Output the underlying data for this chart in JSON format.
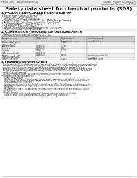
{
  "title": "Safety data sheet for chemical products (SDS)",
  "header_left": "Product Name: Lithium Ion Battery Cell",
  "header_right_line1": "Substance number: SDS-LIB-00010",
  "header_right_line2": "Establishment / Revision: Dec.7.2016",
  "section1_title": "1. PRODUCT AND COMPANY IDENTIFICATION",
  "section1_lines": [
    "• Product name: Lithium Ion Battery Cell",
    "• Product code: Cylindrical-type cell",
    "    (IHR8500U, IHR18650L, IHR18650A)",
    "• Company name:      Banya Electric Co., Ltd., Mobile Energy Company",
    "• Address:   2201, Kannondani, Sumoto City, Hyogo, Japan",
    "• Telephone number:   +81-799-26-4111",
    "• Fax number:   +81-799-26-4120",
    "• Emergency telephone number (Weekday) +81-799-26-2662",
    "    (Night and holiday) +81-799-26-4120"
  ],
  "section2_title": "2. COMPOSITION / INFORMATION ON INGREDIENTS",
  "section2_intro": "• Substance or preparation: Preparation",
  "section2_sub": "• Information about the chemical nature of product:",
  "table_col_headers": [
    "Component name",
    "CAS number",
    "Concentration /\nConcentration range",
    "Classification and\nhazard labeling"
  ],
  "table_rows": [
    [
      "Lithium cobalt oxide\n(LiMnxCoyNizO2)",
      "-",
      "30-60%",
      "-"
    ],
    [
      "Iron",
      "7439-89-6",
      "15-25%",
      "-"
    ],
    [
      "Aluminum",
      "7429-90-5",
      "2-8%",
      "-"
    ],
    [
      "Graphite\n(Wax in graphite-1)\n(Artificial graphite-1)",
      "17760-42-5\n7782-42-5",
      "10-20%",
      "-"
    ],
    [
      "Copper",
      "7440-50-8",
      "5-15%",
      "Sensitization of the skin\ngroup No.2"
    ],
    [
      "Organic electrolyte",
      "-",
      "10-20%",
      "Flammable liquid"
    ]
  ],
  "section3_title": "3. HAZARDS IDENTIFICATION",
  "section3_para1": [
    "For the battery cell, chemical materials are stored in a hermetically sealed metal case, designed to withstand",
    "temperatures by pressure-tolerant construction during normal use. As a result, during normal use, there is no",
    "physical danger of ignition or explosion and there is no danger of hazardous materials leakage.",
    "However, if exposed to a fire, added mechanical shocks, decomposed, when electrolyte may be release.",
    "By gas release cannot be operated. The battery cell case will be breached of fire-patterns, hazardous",
    "materials may be released.",
    "Moreover, if heated strongly by the surrounding fire, toxic gas may be emitted."
  ],
  "section3_effects": [
    "• Most important hazard and effects:",
    "   Human health effects:",
    "   Inhalation: The release of the electrolyte has an anesthesia action and stimulates a respiratory tract.",
    "   Skin contact: The release of the electrolyte stimulates a skin. The electrolyte skin contact causes a",
    "   sore and stimulation on the skin.",
    "   Eye contact: The release of the electrolyte stimulates eyes. The electrolyte eye contact causes a sore",
    "   and stimulation on the eye. Especially, a substance that causes a strong inflammation of the eyes is",
    "   contained.",
    "   Environmental effects: Since a battery cell remains in the environment, do not throw out it into the",
    "   environment."
  ],
  "section3_specific": [
    "• Specific hazards:",
    "   If the electrolyte contacts with water, it will generate detrimental hydrogen fluoride.",
    "   Since the main electrolyte is inflammable liquid, do not bring close to fire."
  ],
  "footer_line": true,
  "bg_color": "#ffffff",
  "text_color": "#111111",
  "header_text_color": "#444444",
  "section_title_color": "#000000",
  "table_header_bg": "#cccccc",
  "table_row_bg_odd": "#eeeeee",
  "table_row_bg_even": "#ffffff",
  "table_border_color": "#888888",
  "divider_color": "#555555"
}
